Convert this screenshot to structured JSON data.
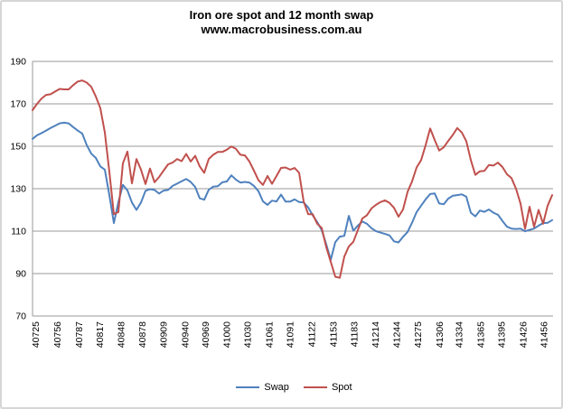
{
  "window": {
    "background": "#FFFFFF",
    "border_color": "#D6D6D6"
  },
  "chart": {
    "title_line1": "Iron ore spot and 12 month swap",
    "title_line2": "www.macrobusiness.com.au"
  },
  "legend": {
    "items": [
      {
        "label": "Swap",
        "color": "#4F81BD"
      },
      {
        "label": "Spot",
        "color": "#C0504D"
      }
    ]
  },
  "colors": {
    "grid": "#999999",
    "axis": "#999999",
    "tick_text": "#000000",
    "swap_line": "#4F81BD",
    "spot_line": "#C0504D"
  },
  "chart_data": {
    "type": "line",
    "title": "Iron ore spot and 12 month swap",
    "subtitle": "www.macrobusiness.com.au",
    "grid": "horizontal-only",
    "legend_position": "bottom",
    "x_axis": {
      "min": 40721,
      "max": 41468.5,
      "tick_values": [
        40725,
        40756,
        40787,
        40817,
        40848,
        40878,
        40909,
        40940,
        40969,
        41000,
        41030,
        41061,
        41091,
        41122,
        41153,
        41183,
        41214,
        41244,
        41275,
        41306,
        41334,
        41365,
        41395,
        41426,
        41456
      ],
      "tick_labels": [
        "40725",
        "40756",
        "40787",
        "40817",
        "40848",
        "40878",
        "40909",
        "40940",
        "40969",
        "41000",
        "41030",
        "41061",
        "41091",
        "41122",
        "41153",
        "41183",
        "41214",
        "41244",
        "41275",
        "41306",
        "41334",
        "41365",
        "41395",
        "41426",
        "41456"
      ]
    },
    "y_axis": {
      "min": 70,
      "max": 190,
      "ticks": [
        70,
        90,
        110,
        130,
        150,
        170,
        190
      ]
    },
    "x_start": 40721,
    "x_step": 6.5,
    "series": [
      {
        "name": "Swap",
        "color": "#4F81BD",
        "values": [
          153.5,
          155.2,
          156.2,
          157.4,
          158.6,
          159.7,
          160.8,
          161.1,
          160.8,
          159,
          157.4,
          156,
          150.5,
          146.5,
          144.5,
          140.5,
          139,
          127,
          113.8,
          123.7,
          131.8,
          129.2,
          123.5,
          120,
          123.5,
          129,
          129.8,
          129.4,
          127.7,
          129.1,
          129.4,
          131.3,
          132.4,
          133.5,
          134.6,
          133.2,
          130.8,
          125.5,
          124.8,
          129.5,
          131,
          131.2,
          133,
          133.4,
          136.3,
          134.3,
          132.9,
          133.2,
          132.9,
          131.3,
          128.8,
          124,
          122.4,
          124.4,
          124,
          127.2,
          123.9,
          123.9,
          125,
          123.7,
          123.5,
          121.2,
          117.5,
          114.3,
          110.5,
          103.8,
          96.5,
          104.8,
          107.4,
          107.8,
          117.2,
          110.2,
          112.6,
          114.5,
          113.5,
          111.4,
          110,
          109.3,
          108.7,
          108,
          105.2,
          104.7,
          107.3,
          109.6,
          114,
          119,
          122,
          125,
          127.5,
          127.8,
          123,
          122.7,
          125.3,
          126.7,
          127,
          127.3,
          126.2,
          118.7,
          117,
          119.7,
          119.1,
          120.2,
          118.7,
          117.7,
          114.8,
          112.1,
          111.2,
          111,
          111.2,
          109.9,
          110.6,
          111.2,
          112.6,
          113.8,
          113.9,
          115.2
        ]
      },
      {
        "name": "Spot",
        "color": "#C0504D",
        "values": [
          167,
          170,
          172.5,
          174.2,
          174.5,
          175.8,
          177,
          176.8,
          176.8,
          178.8,
          180.5,
          181,
          180,
          178,
          173.5,
          168,
          156.5,
          138,
          118,
          119,
          142,
          147.5,
          132.5,
          144,
          139,
          132.2,
          139.5,
          133,
          135.5,
          138.5,
          141.5,
          142.3,
          144,
          143,
          146.4,
          142.8,
          145.5,
          140.5,
          137.5,
          144,
          146,
          147.3,
          147.3,
          148.4,
          149.9,
          148.8,
          146,
          145.7,
          142.8,
          138.5,
          134,
          131.8,
          136,
          132.3,
          136,
          139.8,
          140,
          139,
          139.8,
          137.5,
          124,
          118,
          118,
          113.5,
          111.5,
          102.5,
          95.5,
          88.5,
          88,
          98,
          102.8,
          105,
          110.5,
          116,
          117.5,
          120.7,
          122.4,
          123.7,
          124.5,
          123.3,
          121,
          116.8,
          120.2,
          128.5,
          133.5,
          140,
          143.5,
          150.5,
          158.4,
          153,
          148,
          149.5,
          152.5,
          155.3,
          158.6,
          156.5,
          152.4,
          143.5,
          136.5,
          138.2,
          138.4,
          141.2,
          140.9,
          142.3,
          140.2,
          136.8,
          135,
          130,
          123,
          111,
          121.5,
          112,
          120,
          113.5,
          122,
          127
        ]
      }
    ]
  }
}
